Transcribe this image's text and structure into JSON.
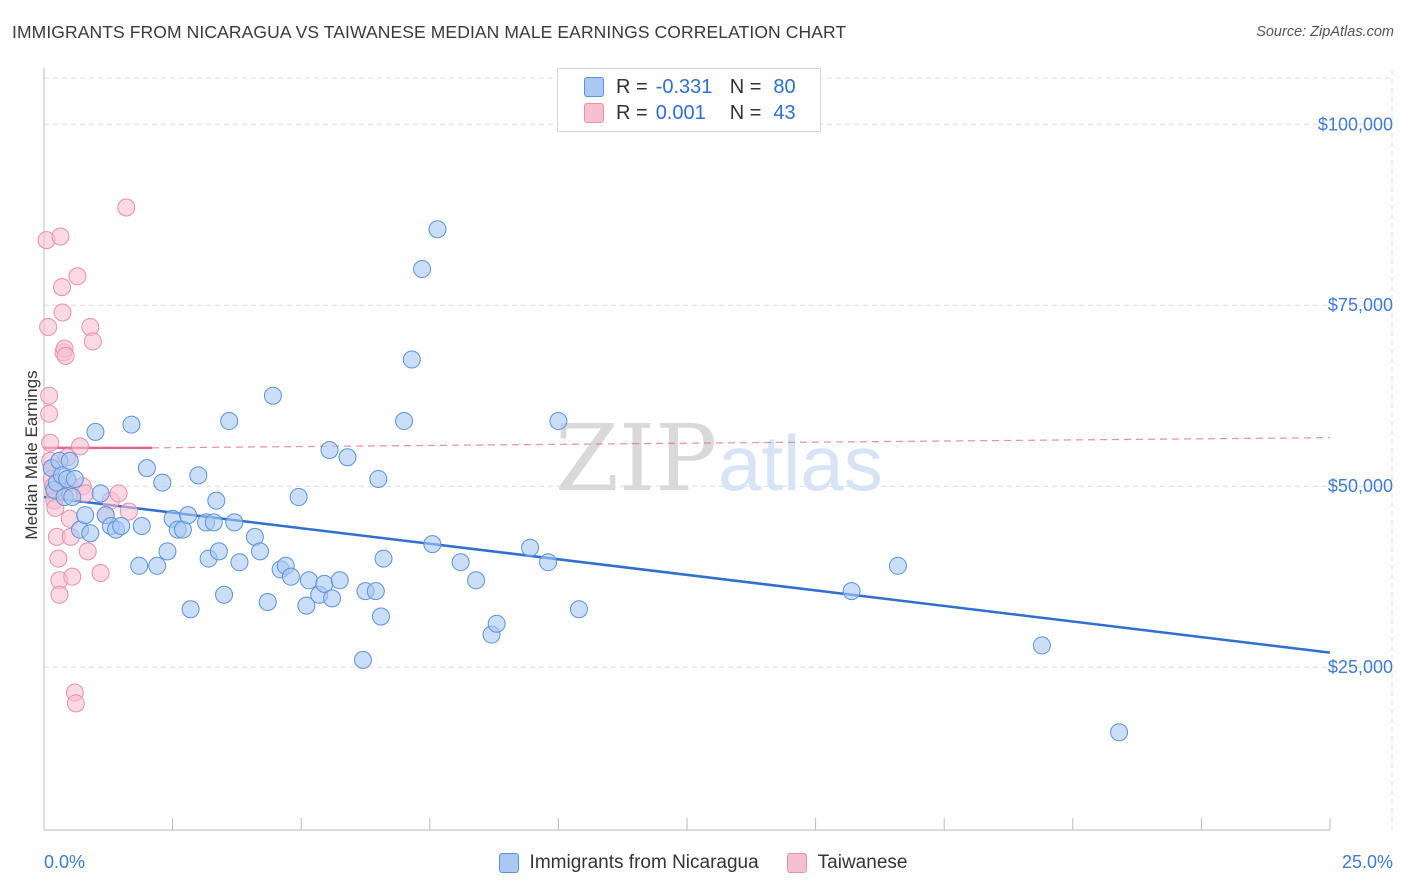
{
  "title": "IMMIGRANTS FROM NICARAGUA VS TAIWANESE MEDIAN MALE EARNINGS CORRELATION CHART",
  "source": "Source: ZipAtlas.com",
  "watermark": {
    "zip": "ZIP",
    "atlas": "atlas"
  },
  "legend": {
    "rows": [
      {
        "r_label": "R =",
        "r_value": "-0.331",
        "n_label": "N =",
        "n_value": "80"
      },
      {
        "r_label": "R =",
        "r_value": "0.001",
        "n_label": "N =",
        "n_value": "43"
      }
    ]
  },
  "bottom_legend": [
    "Immigrants from Nicaragua",
    "Taiwanese"
  ],
  "colors": {
    "blue_fill": "#a9c8f2",
    "blue_stroke": "#5b92dc",
    "blue_line": "#2f6fd0",
    "pink_fill": "#f7bfd2",
    "pink_stroke": "#e98fb0",
    "pink_line": "#e36690",
    "tick_text": "#3d7bd6",
    "grid": "#dddddd"
  },
  "chart_data": {
    "type": "scatter",
    "title": "IMMIGRANTS FROM NICARAGUA VS TAIWANESE MEDIAN MALE EARNINGS CORRELATION CHART",
    "xlabel": "",
    "ylabel": "Median Male Earnings",
    "xlim": [
      0,
      25
    ],
    "ylim": [
      2500,
      107500
    ],
    "x_tick_labels": [
      "0.0%",
      "25.0%"
    ],
    "y_ticks": [
      25000,
      50000,
      75000,
      100000
    ],
    "y_tick_labels": [
      "$25,000",
      "$50,000",
      "$75,000",
      "$100,000"
    ],
    "grid": true,
    "legend_position": "top-center",
    "series": [
      {
        "name": "Immigrants from Nicaragua",
        "R": -0.331,
        "N": 80,
        "trend": {
          "x": [
            0.0,
            25.0
          ],
          "y": [
            48500,
            27000
          ]
        },
        "points": [
          [
            0.15,
            52500
          ],
          [
            0.2,
            49500
          ],
          [
            0.25,
            50500
          ],
          [
            0.3,
            53500
          ],
          [
            0.35,
            51500
          ],
          [
            0.4,
            48500
          ],
          [
            0.45,
            51000
          ],
          [
            0.5,
            53500
          ],
          [
            0.55,
            48500
          ],
          [
            0.6,
            51000
          ],
          [
            0.7,
            44000
          ],
          [
            0.8,
            46000
          ],
          [
            0.9,
            43500
          ],
          [
            1.0,
            57500
          ],
          [
            1.1,
            49000
          ],
          [
            1.2,
            46000
          ],
          [
            1.3,
            44500
          ],
          [
            1.4,
            44000
          ],
          [
            1.5,
            44500
          ],
          [
            1.7,
            58500
          ],
          [
            1.85,
            39000
          ],
          [
            1.9,
            44500
          ],
          [
            2.0,
            52500
          ],
          [
            2.2,
            39000
          ],
          [
            2.3,
            50500
          ],
          [
            2.4,
            41000
          ],
          [
            2.5,
            45500
          ],
          [
            2.6,
            44000
          ],
          [
            2.7,
            44000
          ],
          [
            2.8,
            46000
          ],
          [
            2.85,
            33000
          ],
          [
            3.0,
            51500
          ],
          [
            3.15,
            45000
          ],
          [
            3.2,
            40000
          ],
          [
            3.3,
            45000
          ],
          [
            3.35,
            48000
          ],
          [
            3.4,
            41000
          ],
          [
            3.5,
            35000
          ],
          [
            3.6,
            59000
          ],
          [
            3.7,
            45000
          ],
          [
            3.8,
            39500
          ],
          [
            4.1,
            43000
          ],
          [
            4.2,
            41000
          ],
          [
            4.35,
            34000
          ],
          [
            4.45,
            62500
          ],
          [
            4.6,
            38500
          ],
          [
            4.7,
            39000
          ],
          [
            4.8,
            37500
          ],
          [
            4.95,
            48500
          ],
          [
            5.1,
            33500
          ],
          [
            5.15,
            37000
          ],
          [
            5.35,
            35000
          ],
          [
            5.45,
            36500
          ],
          [
            5.55,
            55000
          ],
          [
            5.6,
            34500
          ],
          [
            5.75,
            37000
          ],
          [
            5.9,
            54000
          ],
          [
            6.2,
            26000
          ],
          [
            6.25,
            35500
          ],
          [
            6.45,
            35500
          ],
          [
            6.5,
            51000
          ],
          [
            6.55,
            32000
          ],
          [
            6.6,
            40000
          ],
          [
            7.0,
            59000
          ],
          [
            7.15,
            67500
          ],
          [
            7.35,
            80000
          ],
          [
            7.65,
            85500
          ],
          [
            7.55,
            42000
          ],
          [
            8.1,
            39500
          ],
          [
            8.4,
            37000
          ],
          [
            8.7,
            29500
          ],
          [
            8.8,
            31000
          ],
          [
            9.45,
            41500
          ],
          [
            9.8,
            39500
          ],
          [
            10.0,
            59000
          ],
          [
            10.4,
            33000
          ],
          [
            15.7,
            35500
          ],
          [
            16.6,
            39000
          ],
          [
            19.4,
            28000
          ],
          [
            20.9,
            16000
          ]
        ]
      },
      {
        "name": "Taiwanese",
        "R": 0.001,
        "N": 43,
        "trend": {
          "x": [
            0.0,
            2.1
          ],
          "y": [
            55300,
            55300
          ]
        },
        "trend_ext": {
          "x": [
            2.1,
            25.0
          ],
          "y": [
            55300,
            56700
          ]
        },
        "points": [
          [
            0.05,
            84000
          ],
          [
            0.08,
            72000
          ],
          [
            0.1,
            62500
          ],
          [
            0.1,
            60000
          ],
          [
            0.12,
            56000
          ],
          [
            0.12,
            53500
          ],
          [
            0.15,
            52500
          ],
          [
            0.15,
            51000
          ],
          [
            0.18,
            50000
          ],
          [
            0.2,
            49000
          ],
          [
            0.2,
            48000
          ],
          [
            0.22,
            47000
          ],
          [
            0.25,
            43000
          ],
          [
            0.28,
            40000
          ],
          [
            0.3,
            37000
          ],
          [
            0.3,
            35000
          ],
          [
            0.32,
            84500
          ],
          [
            0.35,
            77500
          ],
          [
            0.36,
            74000
          ],
          [
            0.38,
            68500
          ],
          [
            0.4,
            69000
          ],
          [
            0.42,
            68000
          ],
          [
            0.45,
            54000
          ],
          [
            0.48,
            50500
          ],
          [
            0.5,
            49000
          ],
          [
            0.5,
            45500
          ],
          [
            0.52,
            43000
          ],
          [
            0.55,
            37500
          ],
          [
            0.6,
            21500
          ],
          [
            0.62,
            20000
          ],
          [
            0.65,
            79000
          ],
          [
            0.7,
            55500
          ],
          [
            0.75,
            50000
          ],
          [
            0.8,
            49000
          ],
          [
            0.85,
            41000
          ],
          [
            0.9,
            72000
          ],
          [
            0.95,
            70000
          ],
          [
            1.1,
            38000
          ],
          [
            1.2,
            46000
          ],
          [
            1.3,
            48000
          ],
          [
            1.45,
            49000
          ],
          [
            1.6,
            88500
          ],
          [
            1.65,
            46500
          ]
        ]
      }
    ]
  }
}
